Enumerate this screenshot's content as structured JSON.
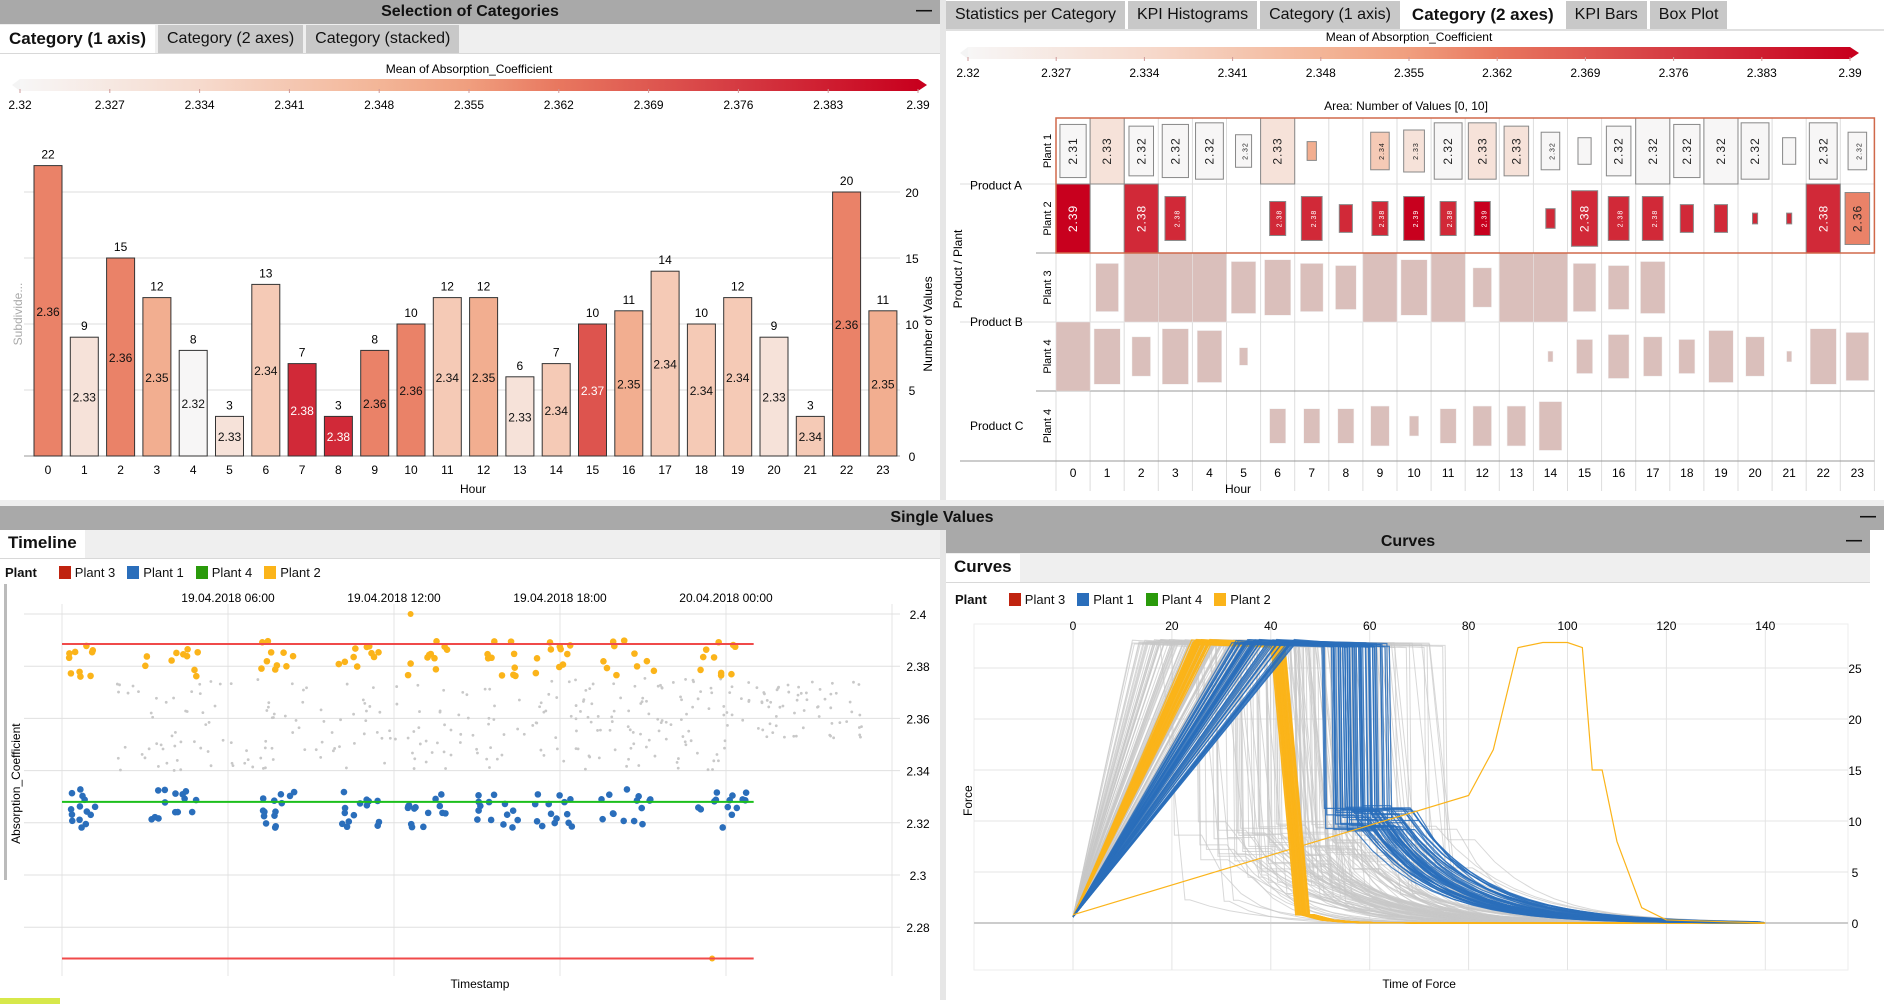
{
  "top_left": {
    "title": "Selection of Categories",
    "minimize": "—",
    "tabs": [
      "Category (1 axis)",
      "Category (2 axes)",
      "Category (stacked)"
    ],
    "active_tab": 0,
    "colorbar_title": "Mean of Absorption_Coefficient",
    "colorbar_ticks": [
      "2.32",
      "2.327",
      "2.334",
      "2.341",
      "2.348",
      "2.355",
      "2.362",
      "2.369",
      "2.376",
      "2.383",
      "2.39"
    ],
    "subdivide_label": "Subdivide...",
    "x_label": "Hour",
    "y_label": "Number of Values",
    "y_ticks": [
      0,
      5,
      10,
      15,
      20
    ],
    "bars": {
      "hours": [
        "0",
        "1",
        "2",
        "3",
        "4",
        "5",
        "6",
        "7",
        "8",
        "9",
        "10",
        "11",
        "12",
        "13",
        "14",
        "15",
        "16",
        "17",
        "18",
        "19",
        "20",
        "21",
        "22",
        "23"
      ],
      "counts": [
        22,
        9,
        15,
        12,
        8,
        3,
        13,
        7,
        3,
        8,
        10,
        12,
        12,
        6,
        7,
        10,
        11,
        14,
        10,
        12,
        9,
        3,
        20,
        11
      ],
      "means": [
        "2.36",
        "2.33",
        "2.36",
        "2.35",
        "2.32",
        "2.33",
        "2.34",
        "2.38",
        "2.38",
        "2.36",
        "2.36",
        "2.34",
        "2.35",
        "2.33",
        "2.34",
        "2.37",
        "2.35",
        "2.34",
        "2.34",
        "2.34",
        "2.33",
        "2.34",
        "2.36",
        "2.35"
      ]
    }
  },
  "colorscale": [
    [
      2.32,
      "#f7f6f6"
    ],
    [
      2.334,
      "#f6dacd"
    ],
    [
      2.348,
      "#f3b597"
    ],
    [
      2.355,
      "#f09e7e"
    ],
    [
      2.362,
      "#e8775f"
    ],
    [
      2.376,
      "#d53a42"
    ],
    [
      2.39,
      "#c8001e"
    ]
  ],
  "top_right": {
    "tabs": [
      "Statistics per Category",
      "KPI Histograms",
      "Category (1 axis)",
      "Category (2 axes)",
      "KPI Bars",
      "Box Plot"
    ],
    "active_tab": 3,
    "colorbar_title": "Mean of Absorption_Coefficient",
    "colorbar_ticks": [
      "2.32",
      "2.327",
      "2.334",
      "2.341",
      "2.348",
      "2.355",
      "2.362",
      "2.369",
      "2.376",
      "2.383",
      "2.39"
    ],
    "area_label": "Area:  Number of Values  [0, 10]",
    "y_title": "Product / Plant",
    "x_label": "Hour",
    "hours": [
      "0",
      "1",
      "2",
      "3",
      "4",
      "5",
      "6",
      "7",
      "8",
      "9",
      "10",
      "11",
      "12",
      "13",
      "14",
      "15",
      "16",
      "17",
      "18",
      "19",
      "20",
      "21",
      "22",
      "23"
    ],
    "selection_color": "#d0694a",
    "muted_color": "#d4b4b0",
    "groups": [
      {
        "product": "Product A",
        "rows": [
          {
            "plant": "Plant 1",
            "cells": [
              [
                8,
                "2.31"
              ],
              [
                10,
                "2.33"
              ],
              [
                7,
                "2.32"
              ],
              [
                8,
                "2.32"
              ],
              [
                9,
                "2.32"
              ],
              [
                3,
                "2.32"
              ],
              [
                10,
                "2.33"
              ],
              [
                1,
                "2.35"
              ],
              null,
              [
                4,
                "2.34"
              ],
              [
                5,
                "2.33"
              ],
              [
                9,
                "2.32"
              ],
              [
                9,
                "2.33"
              ],
              [
                7,
                "2.33"
              ],
              [
                4,
                "2.32"
              ],
              [
                2,
                "2.32"
              ],
              [
                7,
                "2.32"
              ],
              [
                10,
                "2.32"
              ],
              [
                8,
                "2.32"
              ],
              [
                10,
                "2.32"
              ],
              [
                9,
                "2.32"
              ],
              [
                2,
                "2.32"
              ],
              [
                9,
                "2.32"
              ],
              [
                4,
                "2.32"
              ]
            ]
          },
          {
            "plant": "Plant 2",
            "cells": [
              [
                10,
                "2.39"
              ],
              null,
              [
                10,
                "2.38"
              ],
              [
                5,
                "2.38"
              ],
              null,
              null,
              [
                3,
                "2.38"
              ],
              [
                5,
                "2.38"
              ],
              [
                2,
                "2.38"
              ],
              [
                3,
                "2.38"
              ],
              [
                5,
                "2.39"
              ],
              [
                3,
                "2.38"
              ],
              [
                3,
                "2.39"
              ],
              null,
              [
                1,
                "2.38"
              ],
              [
                8,
                "2.38"
              ],
              [
                5,
                "2.38"
              ],
              [
                5,
                "2.38"
              ],
              [
                2,
                "2.38"
              ],
              [
                2,
                "2.38"
              ],
              [
                0.3,
                "2.38"
              ],
              [
                0.3,
                "2.38"
              ],
              [
                10,
                "2.38"
              ],
              [
                7,
                "2.36"
              ]
            ]
          }
        ]
      },
      {
        "product": "Product B",
        "rows": [
          {
            "plant": "Plant 3",
            "cells": [
              null,
              [
                6,
                null
              ],
              [
                10,
                null
              ],
              [
                10,
                null
              ],
              [
                10,
                null
              ],
              [
                7,
                null
              ],
              [
                8,
                null
              ],
              [
                6,
                null
              ],
              [
                5,
                null
              ],
              [
                10,
                null
              ],
              [
                8,
                null
              ],
              [
                10,
                null
              ],
              [
                4,
                null
              ],
              [
                10,
                null
              ],
              [
                10,
                null
              ],
              [
                6,
                null
              ],
              [
                5,
                null
              ],
              [
                7,
                null
              ],
              null,
              null,
              null,
              null,
              null,
              null
            ]
          },
          {
            "plant": "Plant 4",
            "cells": [
              [
                10,
                null
              ],
              [
                8,
                null
              ],
              [
                4,
                null
              ],
              [
                8,
                null
              ],
              [
                7,
                null
              ],
              [
                0.8,
                null
              ],
              null,
              null,
              null,
              null,
              null,
              null,
              null,
              null,
              [
                0.3,
                null
              ],
              [
                3,
                null
              ],
              [
                5,
                null
              ],
              [
                4,
                null
              ],
              [
                3,
                null
              ],
              [
                7,
                null
              ],
              [
                4,
                null
              ],
              [
                0.3,
                null
              ],
              [
                8,
                null
              ],
              [
                6,
                null
              ]
            ]
          }
        ]
      },
      {
        "product": "Product C",
        "rows": [
          {
            "plant": "Plant 4",
            "cells": [
              null,
              null,
              null,
              null,
              null,
              null,
              [
                3,
                null
              ],
              [
                3,
                null
              ],
              [
                3,
                null
              ],
              [
                4,
                null
              ],
              [
                1,
                null
              ],
              [
                3,
                null
              ],
              [
                4,
                null
              ],
              [
                4,
                null
              ],
              [
                6,
                null
              ],
              null,
              null,
              null,
              null,
              null,
              null,
              null,
              null,
              null
            ]
          }
        ]
      }
    ]
  },
  "single_values": {
    "title": "Single Values",
    "minimize": "—"
  },
  "timeline": {
    "tab": "Timeline",
    "legend_title": "Plant",
    "legend": [
      {
        "name": "Plant 3",
        "color": "#c0230f"
      },
      {
        "name": "Plant 1",
        "color": "#2a6ebb"
      },
      {
        "name": "Plant 4",
        "color": "#2a9a0b"
      },
      {
        "name": "Plant 2",
        "color": "#fbb41a"
      }
    ],
    "x_ticks": [
      "19.04.2018 06:00",
      "19.04.2018 12:00",
      "19.04.2018 18:00",
      "20.04.2018 00:00"
    ],
    "x_label": "Timestamp",
    "y_label": "Absorption_Coefficient",
    "y_ticks": [
      "2.4",
      "2.38",
      "2.36",
      "2.34",
      "2.32",
      "2.3",
      "2.28"
    ],
    "limit_lines": [
      {
        "value": 2.3885,
        "color": "#f04a4a"
      },
      {
        "value": 2.328,
        "color": "#1cbf1c"
      },
      {
        "value": 2.268,
        "color": "#f04a4a"
      }
    ],
    "other_color": "#c8c8c8"
  },
  "curves": {
    "title": "Curves",
    "minimize": "—",
    "tab": "Curves",
    "legend_title": "Plant",
    "legend": [
      {
        "name": "Plant 3",
        "color": "#c0230f"
      },
      {
        "name": "Plant 1",
        "color": "#2a6ebb"
      },
      {
        "name": "Plant 4",
        "color": "#2a9a0b"
      },
      {
        "name": "Plant 2",
        "color": "#fbb41a"
      }
    ],
    "x_ticks": [
      "0",
      "20",
      "40",
      "60",
      "80",
      "100",
      "120",
      "140"
    ],
    "y_ticks": [
      "0",
      "5",
      "10",
      "15",
      "20",
      "25"
    ],
    "x_label": "Time of Force",
    "y_label": "Force"
  }
}
